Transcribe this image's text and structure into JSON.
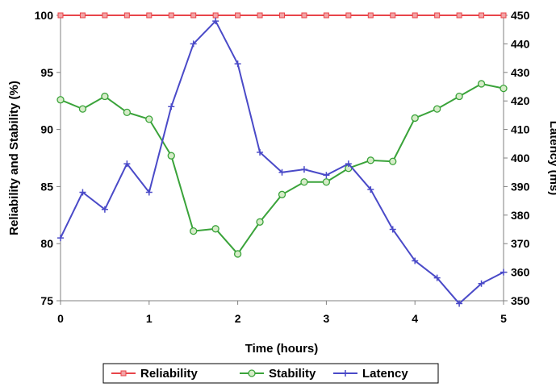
{
  "chart_data": {
    "type": "line",
    "xlabel": "Time (hours)",
    "ylabel_left": "Reliability and Stability (%)",
    "ylabel_right": "Latency (ms)",
    "xlim": [
      0,
      5
    ],
    "ylim_left": [
      75,
      100
    ],
    "ylim_right": [
      350,
      450
    ],
    "x_ticks": [
      "0",
      "1",
      "2",
      "3",
      "4",
      "5"
    ],
    "y_ticks_left": [
      "75",
      "80",
      "85",
      "90",
      "95",
      "100"
    ],
    "y_ticks_right": [
      "350",
      "360",
      "370",
      "380",
      "390",
      "400",
      "410",
      "420",
      "430",
      "440",
      "450"
    ],
    "grid": false,
    "legend_position": "bottom",
    "x": [
      0,
      0.25,
      0.5,
      0.75,
      1,
      1.25,
      1.5,
      1.75,
      2,
      2.25,
      2.5,
      2.75,
      3,
      3.25,
      3.5,
      3.75,
      4,
      4.25,
      4.5,
      4.75,
      5
    ],
    "series": [
      {
        "name": "Reliability",
        "axis": "left",
        "color": "#e8454a",
        "marker": "square",
        "values": [
          100,
          100,
          100,
          100,
          100,
          100,
          100,
          100,
          100,
          100,
          100,
          100,
          100,
          100,
          100,
          100,
          100,
          100,
          100,
          100,
          100
        ]
      },
      {
        "name": "Stability",
        "axis": "left",
        "color": "#3aa33a",
        "marker": "circle",
        "values": [
          92.6,
          91.8,
          92.9,
          91.5,
          90.9,
          87.7,
          81.1,
          81.3,
          79.1,
          81.9,
          84.3,
          85.4,
          85.4,
          86.6,
          87.3,
          87.2,
          91.0,
          91.8,
          92.9,
          94.0,
          93.6
        ]
      },
      {
        "name": "Latency",
        "axis": "right",
        "color": "#4a4ac8",
        "marker": "plus",
        "values": [
          372,
          388,
          382,
          398,
          388,
          418,
          440,
          448,
          433,
          402,
          395,
          396,
          394,
          398,
          389,
          375,
          364,
          358,
          349,
          356,
          360
        ]
      }
    ]
  }
}
